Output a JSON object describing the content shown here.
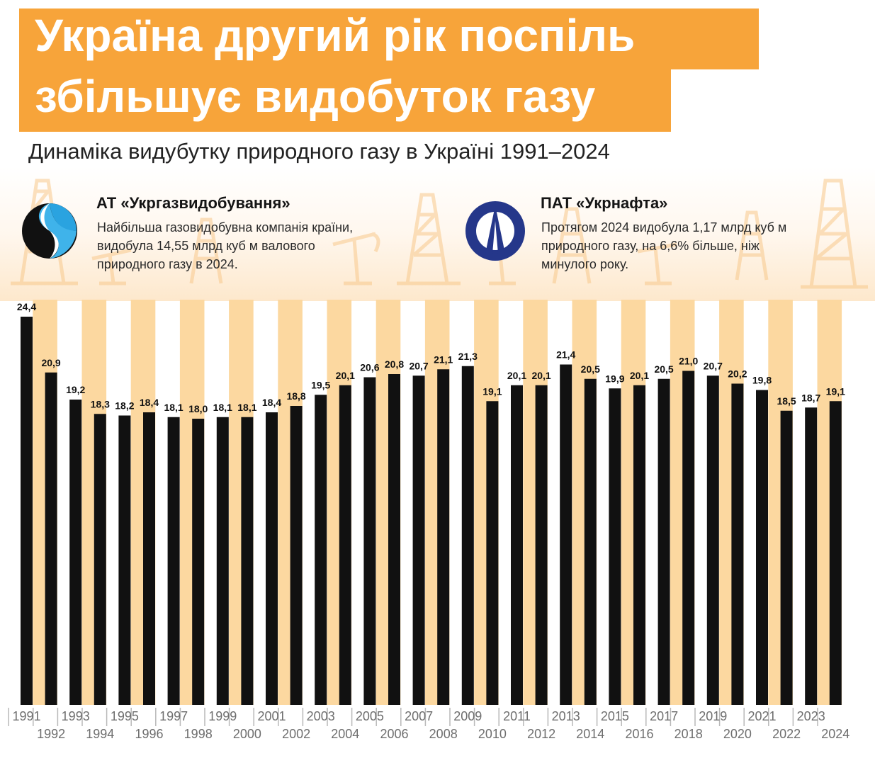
{
  "header": {
    "title_line1": "Україна другий рік поспіль",
    "title_line2": "збільшує видобуток газу",
    "subtitle": "Динаміка видубутку природного газу в Україні 1991–2024"
  },
  "companies": [
    {
      "name": "АТ «Укргазвидобування»",
      "description": "Найбільша газовидобувна компанія країни, видобула 14,55 млрд куб м валового природного газу в 2024.",
      "logo": "ukrgasvydobuvannya-logo"
    },
    {
      "name": "ПАТ «Укрнафта»",
      "description": "Протягом 2024 видобула 1,17 млрд куб м природного газу, на 6,6% більше, ніж минулого року.",
      "logo": "ukrnafta-logo"
    }
  ],
  "colors": {
    "accent": "#f7a43a",
    "stripe": "#fcd8a0",
    "bar": "#111111",
    "axis_text": "#6e6e6e"
  },
  "chart_data": {
    "type": "bar",
    "categories": [
      "1991",
      "1992",
      "1993",
      "1994",
      "1995",
      "1996",
      "1997",
      "1998",
      "1999",
      "2000",
      "2001",
      "2002",
      "2003",
      "2004",
      "2005",
      "2006",
      "2007",
      "2008",
      "2009",
      "2010",
      "2011",
      "2012",
      "2013",
      "2014",
      "2015",
      "2016",
      "2017",
      "2018",
      "2019",
      "2020",
      "2021",
      "2022",
      "2023",
      "2024"
    ],
    "values": [
      24.4,
      20.9,
      19.2,
      18.3,
      18.2,
      18.4,
      18.1,
      18.0,
      18.1,
      18.1,
      18.4,
      18.8,
      19.5,
      20.1,
      20.6,
      20.8,
      20.7,
      21.1,
      21.3,
      19.1,
      20.1,
      20.1,
      21.4,
      20.5,
      19.9,
      20.1,
      20.5,
      21.0,
      20.7,
      20.2,
      19.8,
      18.5,
      18.7,
      19.1
    ],
    "value_labels": [
      "24,4",
      "20,9",
      "19,2",
      "18,3",
      "18,2",
      "18,4",
      "18,1",
      "18,0",
      "18,1",
      "18,1",
      "18,4",
      "18,8",
      "19,5",
      "20,1",
      "20,6",
      "20,8",
      "20,7",
      "21,1",
      "21,3",
      "19,1",
      "20,1",
      "20,1",
      "21,4",
      "20,5",
      "19,9",
      "20,1",
      "20,5",
      "21,0",
      "20,7",
      "20,2",
      "19,8",
      "18,5",
      "18,7",
      "19,1"
    ],
    "grid": false,
    "legend": "none",
    "xlabel": "",
    "ylabel": ""
  }
}
